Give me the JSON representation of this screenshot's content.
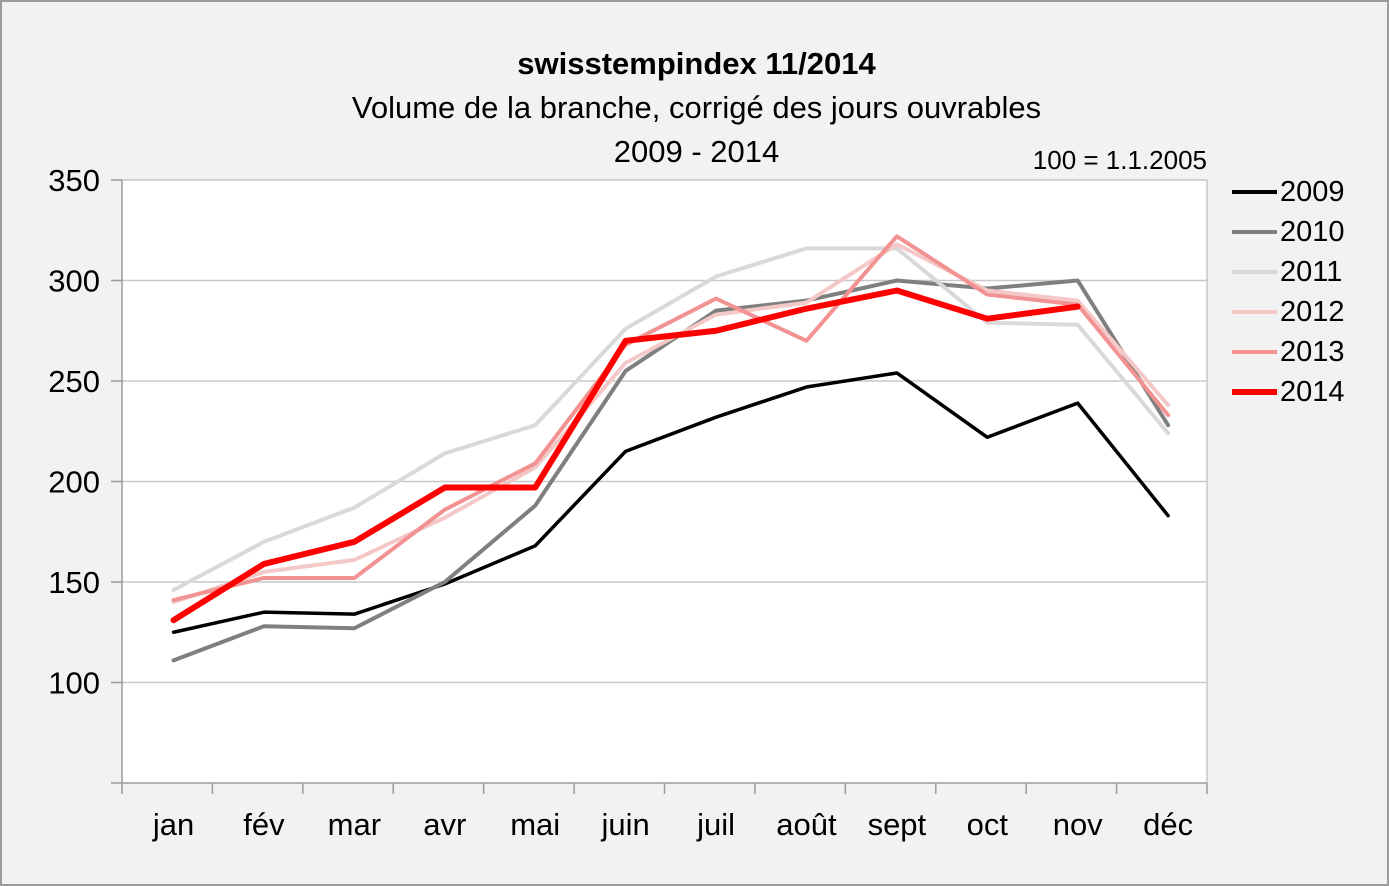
{
  "header": {
    "title": "swisstempindex 11/2014",
    "subtitle": "Volume de la branche, corrigé des jours ouvrables",
    "period": "2009 - 2014",
    "note": "100 = 1.1.2005"
  },
  "chart_data": {
    "type": "line",
    "title": "swisstempindex 11/2014",
    "subtitle": "Volume de la branche, corrigé des jours ouvrables 2009 - 2014",
    "note": "100 = 1.1.2005",
    "categories": [
      "jan",
      "fév",
      "mar",
      "avr",
      "mai",
      "juin",
      "juil",
      "août",
      "sept",
      "oct",
      "nov",
      "déc"
    ],
    "ylim": [
      50,
      350
    ],
    "yticks": [
      100,
      150,
      200,
      250,
      300,
      350
    ],
    "grid": "horizontal",
    "legend_position": "right",
    "series": [
      {
        "name": "2009",
        "color": "#000000",
        "width": 3.5,
        "values": [
          125,
          135,
          134,
          149,
          168,
          215,
          232,
          247,
          254,
          222,
          239,
          183
        ]
      },
      {
        "name": "2010",
        "color": "#7F7F7F",
        "width": 4,
        "values": [
          111,
          128,
          127,
          150,
          188,
          255,
          285,
          290,
          300,
          296,
          300,
          228
        ]
      },
      {
        "name": "2011",
        "color": "#D9D9D9",
        "width": 4,
        "values": [
          146,
          170,
          187,
          214,
          228,
          276,
          302,
          316,
          316,
          279,
          278,
          224
        ]
      },
      {
        "name": "2012",
        "color": "#F5C8C8",
        "width": 4,
        "values": [
          140,
          155,
          161,
          182,
          207,
          259,
          283,
          289,
          318,
          295,
          290,
          238
        ]
      },
      {
        "name": "2013",
        "color": "#F29292",
        "width": 4,
        "values": [
          141,
          152,
          152,
          186,
          209,
          268,
          291,
          270,
          322,
          293,
          288,
          233
        ]
      },
      {
        "name": "2014",
        "color": "#FF0000",
        "width": 6,
        "values": [
          131,
          159,
          170,
          197,
          197,
          270,
          275,
          286,
          295,
          281,
          287,
          null
        ]
      }
    ]
  },
  "colors": {
    "plot_background": "#ffffff",
    "page_background": "#f2f2f2",
    "gridline": "#c8c8c8",
    "axis": "#9b9b9b",
    "text": "#000000"
  }
}
